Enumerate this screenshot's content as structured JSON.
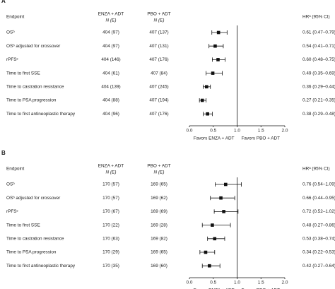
{
  "chart_data": [
    {
      "type": "forest",
      "panel": "A",
      "columns": {
        "endpoint": "Endpoint",
        "arm1": "ENZA + ADT",
        "arm1_sub": "N (E)",
        "arm2": "PBO + ADT",
        "arm2_sub": "N (E)",
        "hr": "HRᵃ (95% CI)"
      },
      "rows": [
        {
          "endpoint": "OSᵇ",
          "arm1": "404 (97)",
          "arm2": "407 (137)",
          "hr": 0.61,
          "lower": 0.47,
          "upper": 0.79,
          "hr_label": "0.61 (0.47–0.79)"
        },
        {
          "endpoint": "OSᵇ adjusted for crossover",
          "arm1": "404 (97)",
          "arm2": "407 (131)",
          "hr": 0.54,
          "lower": 0.41,
          "upper": 0.71,
          "hr_label": "0.54 (0.41–0.71)"
        },
        {
          "endpoint": "rPFSᶜ",
          "arm1": "404 (146)",
          "arm2": "407 (176)",
          "hr": 0.6,
          "lower": 0.48,
          "upper": 0.75,
          "hr_label": "0.60 (0.48–0.75)"
        },
        {
          "endpoint": "Time to first SSE",
          "arm1": "404 (61)",
          "arm2": "407 (84)",
          "hr": 0.49,
          "lower": 0.35,
          "upper": 0.69,
          "hr_label": "0.49 (0.35–0.69)"
        },
        {
          "endpoint": "Time to castration resistance",
          "arm1": "404 (139)",
          "arm2": "407 (245)",
          "hr": 0.36,
          "lower": 0.29,
          "upper": 0.44,
          "hr_label": "0.36 (0.29–0.44)"
        },
        {
          "endpoint": "Time to PSA progression",
          "arm1": "404 (88)",
          "arm2": "407 (194)",
          "hr": 0.27,
          "lower": 0.21,
          "upper": 0.35,
          "hr_label": "0.27 (0.21–0.35)"
        },
        {
          "endpoint": "Time to first antineoplastic therapy",
          "arm1": "404 (96)",
          "arm2": "407 (176)",
          "hr": 0.38,
          "lower": 0.29,
          "upper": 0.48,
          "hr_label": "0.38 (0.29–0.48)"
        }
      ],
      "xlim": [
        0,
        2
      ],
      "xticks": [
        {
          "value": 0,
          "label": "0.0"
        },
        0.5,
        {
          "value": 1,
          "label": "1.0"
        },
        1.5,
        {
          "value": 2,
          "label": "2.0"
        }
      ],
      "reference_line": 1,
      "favors_left": "Favors ENZA + ADT",
      "favors_right": "Favors PBO + ADT"
    },
    {
      "type": "forest",
      "panel": "B",
      "columns": {
        "endpoint": "Endpoint",
        "arm1": "ENZA + ADT",
        "arm1_sub": "N (E)",
        "arm2": "PBO + ADT",
        "arm2_sub": "N (E)",
        "hr": "HRᵃ (95% CI)"
      },
      "rows": [
        {
          "endpoint": "OSᵇ",
          "arm1": "170 (57)",
          "arm2": "169 (65)",
          "hr": 0.76,
          "lower": 0.54,
          "upper": 1.09,
          "hr_label": "0.76 (0.54–1.09)"
        },
        {
          "endpoint": "OSᵇ adjusted for crossover",
          "arm1": "170 (57)",
          "arm2": "169 (62)",
          "hr": 0.66,
          "lower": 0.44,
          "upper": 0.95,
          "hr_label": "0.66 (0.44–0.95)"
        },
        {
          "endpoint": "rPFSᶜ",
          "arm1": "170 (67)",
          "arm2": "169 (69)",
          "hr": 0.72,
          "lower": 0.52,
          "upper": 1.02,
          "hr_label": "0.72 (0.52–1.02)"
        },
        {
          "endpoint": "Time to first SSE",
          "arm1": "170 (22)",
          "arm2": "169 (28)",
          "hr": 0.48,
          "lower": 0.27,
          "upper": 0.86,
          "hr_label": "0.48 (0.27–0.86)"
        },
        {
          "endpoint": "Time to castration resistance",
          "arm1": "170 (63)",
          "arm2": "169 (82)",
          "hr": 0.53,
          "lower": 0.38,
          "upper": 0.74,
          "hr_label": "0.53 (0.38–0.74)"
        },
        {
          "endpoint": "Time to PSA progression",
          "arm1": "170 (29)",
          "arm2": "169 (65)",
          "hr": 0.34,
          "lower": 0.22,
          "upper": 0.53,
          "hr_label": "0.34 (0.22–0.53)"
        },
        {
          "endpoint": "Time to first antineoplastic therapy",
          "arm1": "170 (35)",
          "arm2": "169 (60)",
          "hr": 0.42,
          "lower": 0.27,
          "upper": 0.64,
          "hr_label": "0.42 (0.27–0.64)"
        }
      ],
      "xlim": [
        0,
        2
      ],
      "xticks": [
        {
          "value": 0,
          "label": "0.0"
        },
        0.5,
        {
          "value": 1,
          "label": "1.0"
        },
        1.5,
        {
          "value": 2,
          "label": "2.0"
        }
      ],
      "reference_line": 1,
      "favors_left": "Favors ENZA + ADT",
      "favors_right": "Favors PBO + ADT"
    }
  ]
}
